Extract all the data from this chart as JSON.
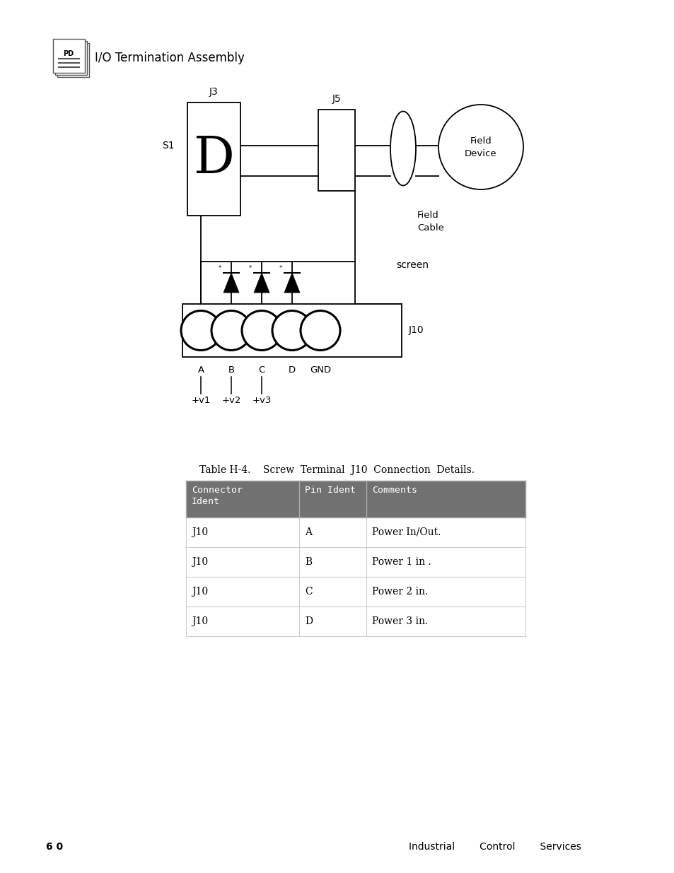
{
  "bg_color": "#ffffff",
  "header_text": "I/O Termination Assembly",
  "table_title": "Table H‑4.    Screw  Terminal  J10  Connection  Details.",
  "table_headers": [
    "Connector\nIdent",
    "Pin Ident",
    "Comments"
  ],
  "table_header_bg": "#777777",
  "table_header_color": "#ffffff",
  "table_rows": [
    [
      "J10",
      "A",
      "Power In/Out."
    ],
    [
      "J10",
      "B",
      "Power 1 in ."
    ],
    [
      "J10",
      "C",
      "Power 2 in."
    ],
    [
      "J10",
      "D",
      "Power 3 in."
    ]
  ],
  "footer_page": "6 0",
  "footer_right": "Industrial        Control        Services"
}
